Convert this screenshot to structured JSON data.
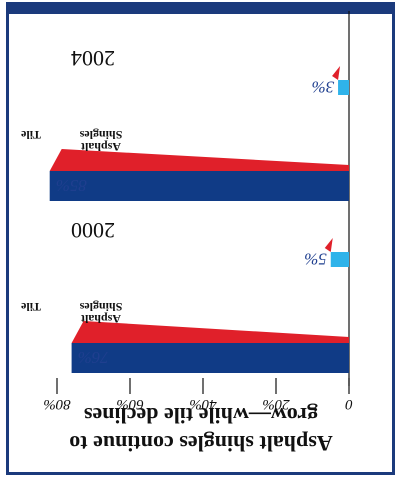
{
  "title": [
    "Asphalt shingles continue to",
    "grow—while tile declines"
  ],
  "colors": {
    "frame": "#1b3a7c",
    "asphalt": "#103b86",
    "asphalt_side": "#e0202a",
    "tile": "#2fb3ea",
    "tile_side": "#e0202a"
  },
  "chart_data": {
    "type": "bar",
    "orientation": "horizontal",
    "image_rotated_180": true,
    "title": "Asphalt shingles continue to grow—while tile declines",
    "groups": [
      "2000",
      "2004"
    ],
    "categories": [
      "Asphalt Shingles",
      "Tile"
    ],
    "series": [
      {
        "name": "2000",
        "values": [
          76,
          5
        ],
        "labels": [
          "76%",
          "5%"
        ]
      },
      {
        "name": "2004",
        "values": [
          85,
          3
        ],
        "labels": [
          "85%",
          "3%"
        ]
      }
    ],
    "xlim": [
      0,
      80
    ],
    "xticks": [
      0,
      20,
      40,
      60,
      80
    ],
    "xtick_labels": [
      "0",
      "20%",
      "40%",
      "60%",
      "80%"
    ],
    "xlabel": "",
    "ylabel": "",
    "grid": false
  }
}
